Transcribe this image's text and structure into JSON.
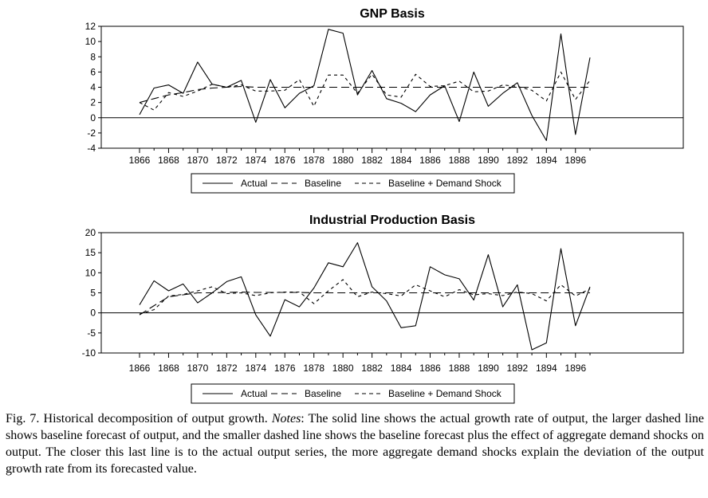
{
  "chart_data": [
    {
      "type": "line",
      "title": "GNP Basis",
      "x": [
        1866,
        1867,
        1868,
        1869,
        1870,
        1871,
        1872,
        1873,
        1874,
        1875,
        1876,
        1877,
        1878,
        1879,
        1880,
        1881,
        1882,
        1883,
        1884,
        1885,
        1886,
        1887,
        1888,
        1889,
        1890,
        1891,
        1892,
        1893,
        1894,
        1895,
        1896,
        1897
      ],
      "xticks": [
        "1866",
        "1868",
        "1870",
        "1872",
        "1874",
        "1876",
        "1878",
        "1880",
        "1882",
        "1884",
        "1886",
        "1888",
        "1890",
        "1892",
        "1894",
        "1896"
      ],
      "yticks": [
        "12",
        "10",
        "8",
        "6",
        "4",
        "2",
        "0",
        "-2",
        "-4"
      ],
      "ylim": [
        -4,
        12
      ],
      "xlabel": "",
      "ylabel": "",
      "legend": [
        "Actual",
        "Baseline",
        "Baseline + Demand Shock"
      ],
      "legend_position": "bottom",
      "series": [
        {
          "name": "Actual",
          "style": "solid",
          "values": [
            0.4,
            3.9,
            4.3,
            3.2,
            7.3,
            4.4,
            4.0,
            4.9,
            -0.6,
            5.0,
            1.3,
            3.2,
            4.2,
            11.6,
            11.1,
            3.0,
            6.2,
            2.5,
            1.9,
            0.8,
            3.0,
            4.2,
            -0.5,
            6.0,
            1.5,
            3.2,
            4.6,
            0.3,
            -3.0,
            11.0,
            -2.2,
            7.9
          ]
        },
        {
          "name": "Baseline",
          "style": "dashed",
          "values": [
            2.0,
            2.5,
            3.0,
            3.3,
            3.7,
            3.9,
            4.0,
            4.1,
            4.0,
            4.0,
            4.0,
            4.0,
            4.0,
            4.0,
            4.0,
            4.0,
            4.0,
            4.0,
            4.0,
            4.0,
            4.0,
            4.0,
            4.0,
            4.0,
            4.0,
            4.0,
            4.0,
            4.0,
            4.0,
            4.0,
            4.0,
            4.0
          ]
        },
        {
          "name": "Baseline + Demand Shock",
          "style": "dotted",
          "values": [
            2.0,
            1.0,
            3.3,
            2.8,
            3.5,
            4.4,
            4.0,
            4.3,
            3.5,
            3.5,
            3.6,
            5.0,
            1.5,
            5.6,
            5.6,
            3.2,
            5.7,
            3.0,
            2.7,
            5.7,
            4.1,
            4.2,
            4.8,
            3.4,
            3.5,
            4.3,
            4.1,
            3.6,
            2.2,
            6.0,
            2.4,
            4.9
          ]
        }
      ]
    },
    {
      "type": "line",
      "title": "Industrial Production Basis",
      "x": [
        1866,
        1867,
        1868,
        1869,
        1870,
        1871,
        1872,
        1873,
        1874,
        1875,
        1876,
        1877,
        1878,
        1879,
        1880,
        1881,
        1882,
        1883,
        1884,
        1885,
        1886,
        1887,
        1888,
        1889,
        1890,
        1891,
        1892,
        1893,
        1894,
        1895,
        1896,
        1897
      ],
      "xticks": [
        "1866",
        "1868",
        "1870",
        "1872",
        "1874",
        "1876",
        "1878",
        "1880",
        "1882",
        "1884",
        "1886",
        "1888",
        "1890",
        "1892",
        "1894",
        "1896"
      ],
      "yticks": [
        "20",
        "15",
        "10",
        "5",
        "0",
        "-5",
        "-10"
      ],
      "ylim": [
        -10,
        20
      ],
      "xlabel": "",
      "ylabel": "",
      "legend": [
        "Actual",
        "Baseline",
        "Baseline + Demand Shock"
      ],
      "legend_position": "bottom",
      "series": [
        {
          "name": "Actual",
          "style": "solid",
          "values": [
            2.0,
            8.0,
            5.5,
            7.2,
            2.5,
            5.0,
            7.8,
            9.0,
            -0.5,
            -5.8,
            3.3,
            1.5,
            6.2,
            12.5,
            11.5,
            17.5,
            6.5,
            3.0,
            -3.7,
            -3.2,
            11.5,
            9.5,
            8.5,
            3.2,
            14.5,
            1.5,
            7.0,
            -9.2,
            -7.5,
            16.0,
            -3.2,
            6.5
          ]
        },
        {
          "name": "Baseline",
          "style": "dashed",
          "values": [
            -0.5,
            1.8,
            4.0,
            4.5,
            5.0,
            5.0,
            5.1,
            5.2,
            5.1,
            5.1,
            5.1,
            5.1,
            5.0,
            5.0,
            5.0,
            5.0,
            5.0,
            5.0,
            5.0,
            5.0,
            5.0,
            5.0,
            5.0,
            5.0,
            5.0,
            5.0,
            5.0,
            5.0,
            5.0,
            5.0,
            5.0,
            5.0
          ]
        },
        {
          "name": "Baseline + Demand Shock",
          "style": "dotted",
          "values": [
            -0.3,
            0.8,
            4.2,
            4.6,
            5.5,
            6.5,
            4.8,
            5.0,
            4.3,
            5.0,
            5.2,
            5.2,
            2.3,
            5.5,
            8.3,
            4.0,
            5.2,
            4.8,
            4.2,
            7.0,
            5.5,
            4.0,
            5.8,
            4.5,
            4.8,
            4.3,
            5.2,
            4.8,
            3.0,
            7.0,
            4.2,
            6.0
          ]
        }
      ]
    }
  ],
  "caption": {
    "fig_label": "Fig. 7.  Historical decomposition of output growth. ",
    "notes_label": "Notes",
    "text": ": The solid line shows the actual growth rate of output, the larger dashed line shows baseline forecast of output, and the smaller dashed line shows the baseline forecast plus the effect of aggregate demand shocks on output. The closer this last line is to the actual output series, the more aggregate demand shocks explain the deviation of the output growth rate from its forecasted value."
  }
}
